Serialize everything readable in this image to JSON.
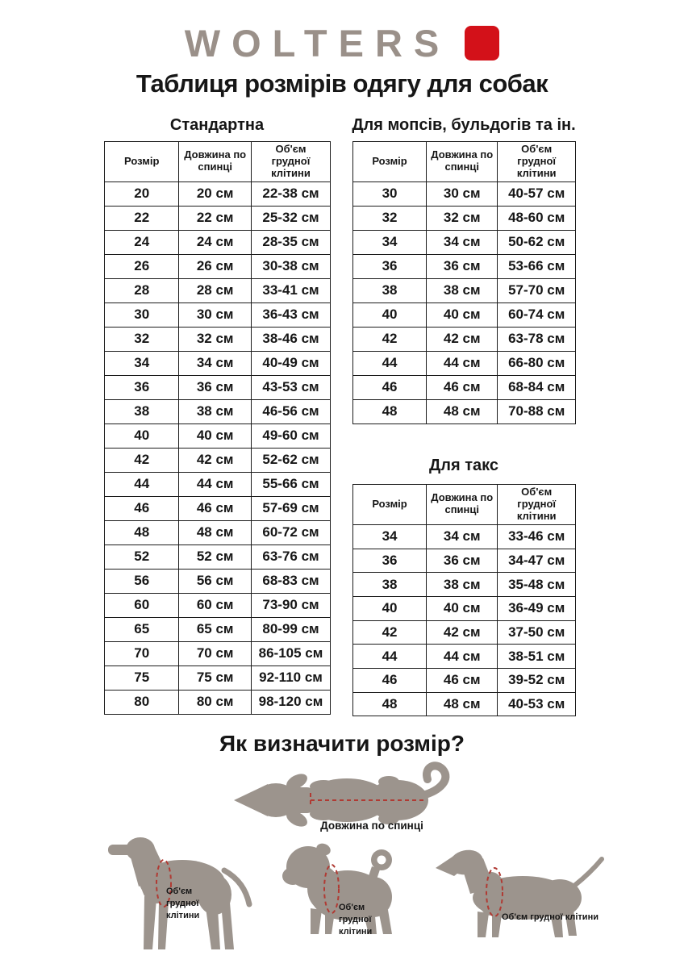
{
  "logo": {
    "text": "WOLTERS"
  },
  "title": "Таблиця розмірів одягу для собак",
  "tables": [
    {
      "title": "Стандартна",
      "columns": [
        "Розмір",
        "Довжина по спинці",
        "Об'єм грудної клітини"
      ],
      "rows": [
        [
          "20",
          "20 см",
          "22-38 см"
        ],
        [
          "22",
          "22 см",
          "25-32 см"
        ],
        [
          "24",
          "24 см",
          "28-35 см"
        ],
        [
          "26",
          "26 см",
          "30-38 см"
        ],
        [
          "28",
          "28 см",
          "33-41 см"
        ],
        [
          "30",
          "30 см",
          "36-43 см"
        ],
        [
          "32",
          "32 см",
          "38-46 см"
        ],
        [
          "34",
          "34 см",
          "40-49 см"
        ],
        [
          "36",
          "36 см",
          "43-53 см"
        ],
        [
          "38",
          "38 см",
          "46-56 см"
        ],
        [
          "40",
          "40 см",
          "49-60 см"
        ],
        [
          "42",
          "42 см",
          "52-62 см"
        ],
        [
          "44",
          "44 см",
          "55-66 см"
        ],
        [
          "46",
          "46 см",
          "57-69 см"
        ],
        [
          "48",
          "48 см",
          "60-72 см"
        ],
        [
          "52",
          "52 см",
          "63-76 см"
        ],
        [
          "56",
          "56 см",
          "68-83 см"
        ],
        [
          "60",
          "60 см",
          "73-90 см"
        ],
        [
          "65",
          "65 см",
          "80-99 см"
        ],
        [
          "70",
          "70 см",
          "86-105 см"
        ],
        [
          "75",
          "75 см",
          "92-110 см"
        ],
        [
          "80",
          "80 см",
          "98-120 см"
        ]
      ]
    },
    {
      "title": "Для мопсів, бульдогів та ін.",
      "columns": [
        "Розмір",
        "Довжина по спинці",
        "Об'єм грудної клітини"
      ],
      "rows": [
        [
          "30",
          "30 см",
          "40-57 см"
        ],
        [
          "32",
          "32 см",
          "48-60 см"
        ],
        [
          "34",
          "34 см",
          "50-62 см"
        ],
        [
          "36",
          "36 см",
          "53-66 см"
        ],
        [
          "38",
          "38 см",
          "57-70 см"
        ],
        [
          "40",
          "40 см",
          "60-74 см"
        ],
        [
          "42",
          "42 см",
          "63-78 см"
        ],
        [
          "44",
          "44 см",
          "66-80 см"
        ],
        [
          "46",
          "46 см",
          "68-84 см"
        ],
        [
          "48",
          "48 см",
          "70-88 см"
        ]
      ]
    },
    {
      "title": "Для такс",
      "columns": [
        "Розмір",
        "Довжина по спинці",
        "Об'єм грудної клітини"
      ],
      "rows": [
        [
          "34",
          "34 см",
          "33-46 см"
        ],
        [
          "36",
          "36 см",
          "34-47 см"
        ],
        [
          "38",
          "38 см",
          "35-48 см"
        ],
        [
          "40",
          "40 см",
          "36-49 см"
        ],
        [
          "42",
          "42 см",
          "37-50 см"
        ],
        [
          "44",
          "44 см",
          "38-51 см"
        ],
        [
          "46",
          "46 см",
          "39-52 см"
        ],
        [
          "48",
          "48 см",
          "40-53 см"
        ]
      ]
    }
  ],
  "how_to": {
    "heading": "Як визначити розмір?",
    "back_label": "Довжина по спинці",
    "chest_label": "Об'єм грудної клітини"
  },
  "colors": {
    "accent-red": "#d31119",
    "logo-taupe": "#9a9089",
    "silhouette": "#9c948d",
    "dash-red": "#b03a33",
    "text-black": "#161616"
  }
}
